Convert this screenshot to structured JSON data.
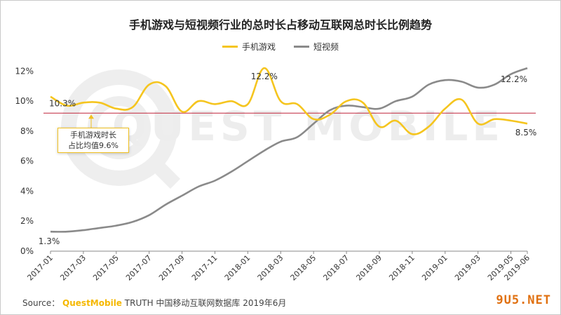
{
  "chart_data": {
    "type": "line",
    "title": "手机游戏与短视频行业的总时长占移动互联网总时长比例趋势",
    "categories": [
      "2017-01",
      "2017-02",
      "2017-03",
      "2017-04",
      "2017-05",
      "2017-06",
      "2017-07",
      "2017-08",
      "2017-09",
      "2017-10",
      "2017-11",
      "2017-12",
      "2018-01",
      "2018-02",
      "2018-03",
      "2018-04",
      "2018-05",
      "2018-06",
      "2018-07",
      "2018-08",
      "2018-09",
      "2018-10",
      "2018-11",
      "2018-12",
      "2019-01",
      "2019-02",
      "2019-03",
      "2019-04",
      "2019-05",
      "2019-06"
    ],
    "x_tick_labels": [
      "2017-01",
      "2017-03",
      "2017-05",
      "2017-07",
      "2017-09",
      "2017-11",
      "2018-01",
      "2018-03",
      "2018-05",
      "2018-07",
      "2018-09",
      "2018-11",
      "2019-01",
      "2019-03",
      "2019-05",
      "2019-06"
    ],
    "y_tick_labels": [
      "0%",
      "2%",
      "4%",
      "6%",
      "8%",
      "10%",
      "12%"
    ],
    "ylim": [
      0,
      13
    ],
    "grid": false,
    "legend_position": "top-center",
    "series": [
      {
        "name": "手机游戏",
        "color": "#f5c51f",
        "values": [
          10.3,
          9.7,
          9.9,
          9.9,
          9.5,
          9.6,
          11.1,
          11.0,
          9.3,
          10.0,
          9.8,
          10.0,
          9.8,
          12.2,
          10.0,
          9.8,
          8.8,
          9.1,
          10.0,
          9.9,
          8.3,
          8.7,
          7.8,
          8.3,
          9.5,
          10.1,
          8.5,
          8.8,
          8.7,
          8.5
        ]
      },
      {
        "name": "短视频",
        "color": "#8a8a8a",
        "values": [
          1.3,
          1.3,
          1.4,
          1.55,
          1.7,
          1.95,
          2.4,
          3.1,
          3.7,
          4.3,
          4.7,
          5.3,
          6.0,
          6.7,
          7.3,
          7.6,
          8.5,
          9.4,
          9.7,
          9.6,
          9.5,
          10.0,
          10.3,
          11.1,
          11.4,
          11.3,
          10.9,
          11.1,
          11.8,
          12.2
        ]
      }
    ],
    "reference_line": {
      "value": 9.2,
      "color": "#c0253a"
    },
    "data_labels": [
      {
        "series": 0,
        "index": 0,
        "text": "10.3%"
      },
      {
        "series": 0,
        "index": 13,
        "text": "12.2%"
      },
      {
        "series": 0,
        "index": 29,
        "text": "8.5%"
      },
      {
        "series": 1,
        "index": 0,
        "text": "1.3%"
      },
      {
        "series": 1,
        "index": 29,
        "text": "12.2%"
      }
    ]
  },
  "callout": {
    "line1": "手机游戏时长",
    "line2": "占比均值9.6%"
  },
  "source": {
    "prefix": "Source：",
    "brand": "QuestMobile",
    "suffix": " TRUTH 中国移动互联网数据库 2019年6月"
  },
  "watermark": "QUEST MOBILE",
  "site_mark": "9U5.NET"
}
